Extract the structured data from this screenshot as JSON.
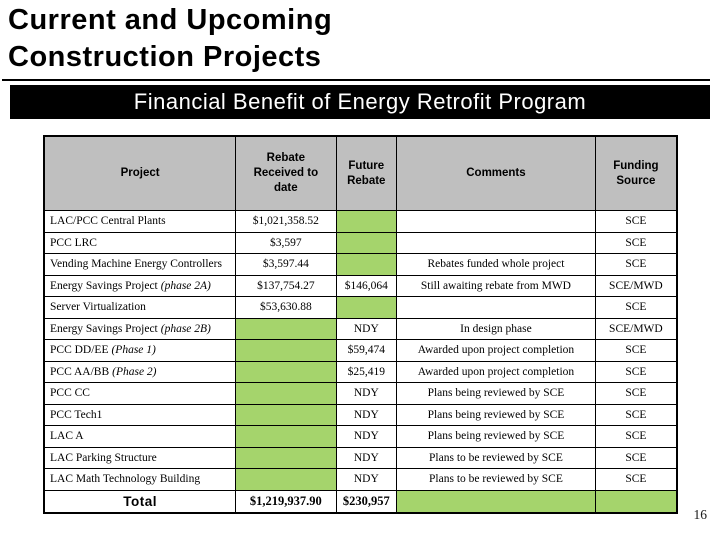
{
  "slide": {
    "title_line1": "Current and Upcoming",
    "title_line2": "Construction Projects",
    "banner": "Financial Benefit of Energy Retrofit Program",
    "page_number": "16"
  },
  "colors": {
    "highlight_green": "#A5D46C",
    "header_gray": "#BFBFBF",
    "banner_bg": "#000000",
    "banner_text": "#FFFFFF"
  },
  "table": {
    "headers": [
      "Project",
      "Rebate Received to date",
      "Future Rebate",
      "Comments",
      "Funding Source"
    ],
    "rows": [
      {
        "project": "LAC/PCC Central Plants",
        "project_italic": "",
        "rebate": "$1,021,358.52",
        "future": "",
        "comments": "",
        "funding": "SCE",
        "green": [
          "future"
        ],
        "is_total": false
      },
      {
        "project": "PCC LRC",
        "project_italic": "",
        "rebate": "$3,597",
        "future": "",
        "comments": "",
        "funding": "SCE",
        "green": [
          "future"
        ],
        "is_total": false
      },
      {
        "project": "Vending Machine Energy Controllers",
        "project_italic": "",
        "rebate": "$3,597.44",
        "future": "",
        "comments": "Rebates funded whole project",
        "funding": "SCE",
        "green": [
          "future"
        ],
        "is_total": false
      },
      {
        "project": "Energy Savings Project",
        "project_italic": "(phase 2A)",
        "rebate": "$137,754.27",
        "future": "$146,064",
        "comments": "Still awaiting rebate from MWD",
        "funding": "SCE/MWD",
        "green": [],
        "is_total": false
      },
      {
        "project": "Server Virtualization",
        "project_italic": "",
        "rebate": "$53,630.88",
        "future": "",
        "comments": "",
        "funding": "SCE",
        "green": [
          "future"
        ],
        "is_total": false
      },
      {
        "project": "Energy Savings Project",
        "project_italic": "(phase 2B)",
        "rebate": "",
        "future": "NDY",
        "comments": "In design phase",
        "funding": "SCE/MWD",
        "green": [
          "rebate"
        ],
        "is_total": false
      },
      {
        "project": "PCC DD/EE",
        "project_italic": "(Phase 1)",
        "rebate": "",
        "future": "$59,474",
        "comments": "Awarded upon project completion",
        "funding": "SCE",
        "green": [
          "rebate"
        ],
        "is_total": false
      },
      {
        "project": "PCC AA/BB",
        "project_italic": "(Phase 2)",
        "rebate": "",
        "future": "$25,419",
        "comments": "Awarded upon project completion",
        "funding": "SCE",
        "green": [
          "rebate"
        ],
        "is_total": false
      },
      {
        "project": "PCC CC",
        "project_italic": "",
        "rebate": "",
        "future": "NDY",
        "comments": "Plans being reviewed by SCE",
        "funding": "SCE",
        "green": [
          "rebate"
        ],
        "is_total": false
      },
      {
        "project": "PCC Tech1",
        "project_italic": "",
        "rebate": "",
        "future": "NDY",
        "comments": "Plans being reviewed by SCE",
        "funding": "SCE",
        "green": [
          "rebate"
        ],
        "is_total": false
      },
      {
        "project": "LAC A",
        "project_italic": "",
        "rebate": "",
        "future": "NDY",
        "comments": "Plans being reviewed by SCE",
        "funding": "SCE",
        "green": [
          "rebate"
        ],
        "is_total": false
      },
      {
        "project": "LAC Parking Structure",
        "project_italic": "",
        "rebate": "",
        "future": "NDY",
        "comments": "Plans to be reviewed by SCE",
        "funding": "SCE",
        "green": [
          "rebate"
        ],
        "is_total": false
      },
      {
        "project": "LAC Math Technology Building",
        "project_italic": "",
        "rebate": "",
        "future": "NDY",
        "comments": "Plans to be reviewed by SCE",
        "funding": "SCE",
        "green": [
          "rebate"
        ],
        "is_total": false
      },
      {
        "project": "Total",
        "project_italic": "",
        "rebate": "$1,219,937.90",
        "future": "$230,957",
        "comments": "",
        "funding": "",
        "green": [
          "comments",
          "funding"
        ],
        "is_total": true
      }
    ]
  }
}
